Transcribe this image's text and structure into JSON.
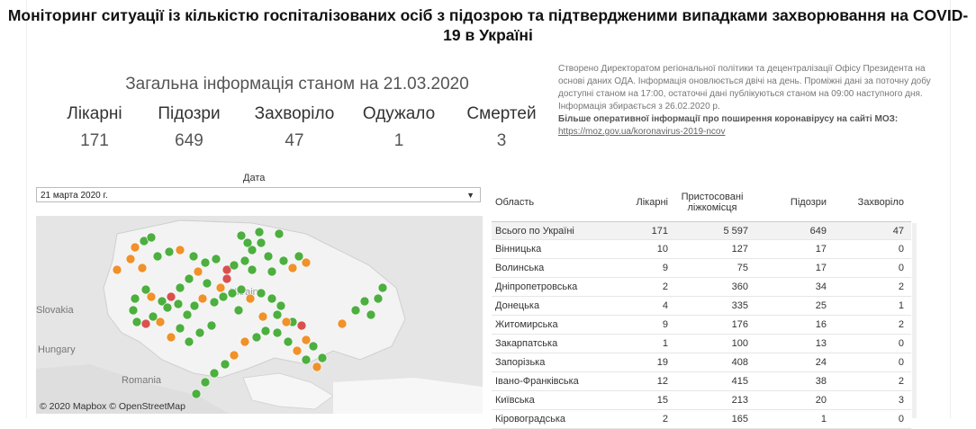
{
  "title": "Моніторинг ситуації із кількістю госпіталізованих осіб з підозрою та підтвердженими випадками захворювання на COVID-19 в Україні",
  "summary": {
    "heading": "Загальна інформація станом на 21.03.2020",
    "metrics": [
      {
        "label": "Лікарні",
        "value": "171"
      },
      {
        "label": "Підозри",
        "value": "649"
      },
      {
        "label": "Захворіло",
        "value": "47"
      },
      {
        "label": "Одужало",
        "value": "1"
      },
      {
        "label": "Смертей",
        "value": "3"
      }
    ]
  },
  "info": {
    "text": "Створено Директоратом регіональної політики та децентралізації Офісу Президента на основі даних ОДА. Інформація оновлюється двічі на день. Проміжні дані за поточну добу доступні станом на 17:00, остаточні дані публікуються станом на 09:00 наступного дня. Інформація збирається з 26.02.2020 р.",
    "more_label": "Більше оперативної інформації про поширення коронавірусу на сайті МОЗ: ",
    "link": "https://moz.gov.ua/koronavirus-2019-ncov"
  },
  "filter": {
    "label": "Дата",
    "selected": "21 марта 2020 г."
  },
  "map": {
    "attribution": "© 2020 Mapbox © OpenStreetMap",
    "place_labels": [
      "Slovakia",
      "Hungary",
      "Romania",
      "Ukraine"
    ],
    "legend_colors": {
      "green": "#4caf3f",
      "orange": "#f0912a",
      "red": "#d9514e"
    }
  },
  "table": {
    "columns": [
      "Область",
      "Лікарні",
      "Пристосовані ліжкомісця",
      "Підозри",
      "Захворіло"
    ],
    "rows": [
      [
        "Всього по Україні",
        "171",
        "5 597",
        "649",
        "47"
      ],
      [
        "Вінницька",
        "10",
        "127",
        "17",
        "0"
      ],
      [
        "Волинська",
        "9",
        "75",
        "17",
        "0"
      ],
      [
        "Дніпропетровська",
        "2",
        "360",
        "34",
        "2"
      ],
      [
        "Донецька",
        "4",
        "335",
        "25",
        "1"
      ],
      [
        "Житомирська",
        "9",
        "176",
        "16",
        "2"
      ],
      [
        "Закарпатська",
        "1",
        "100",
        "13",
        "0"
      ],
      [
        "Запорізька",
        "19",
        "408",
        "24",
        "0"
      ],
      [
        "Івано-Франківська",
        "12",
        "415",
        "38",
        "2"
      ],
      [
        "Київська",
        "15",
        "213",
        "20",
        "3"
      ],
      [
        "Кіровоградська",
        "2",
        "165",
        "1",
        "0"
      ]
    ]
  }
}
